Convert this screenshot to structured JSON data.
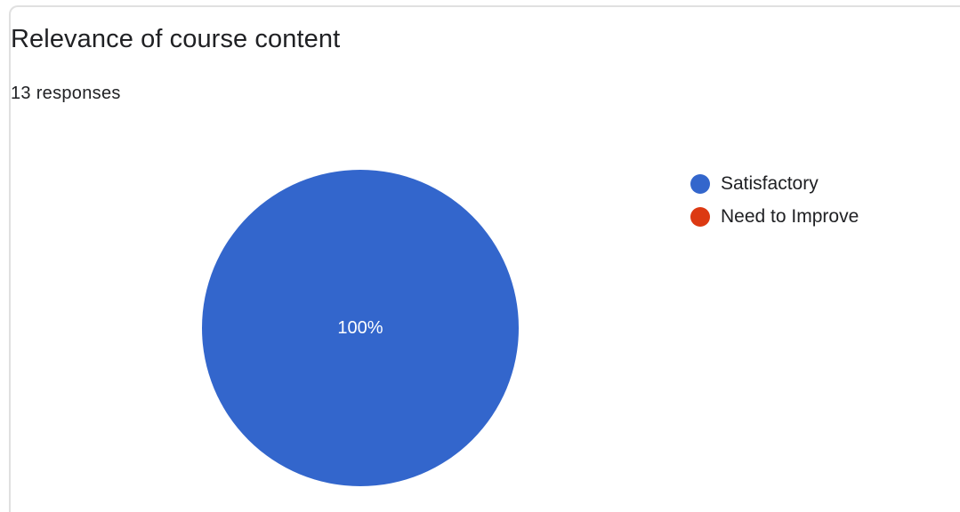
{
  "card": {
    "title": "Relevance of course content",
    "responses": "13 responses"
  },
  "chart_data": {
    "type": "pie",
    "categories": [
      "Satisfactory",
      "Need to Improve"
    ],
    "values": [
      13,
      0
    ],
    "colors": [
      "#3366cc",
      "#dc3912"
    ],
    "labels": [
      "100%",
      ""
    ],
    "label_color": "#ffffff",
    "legend": "right"
  }
}
